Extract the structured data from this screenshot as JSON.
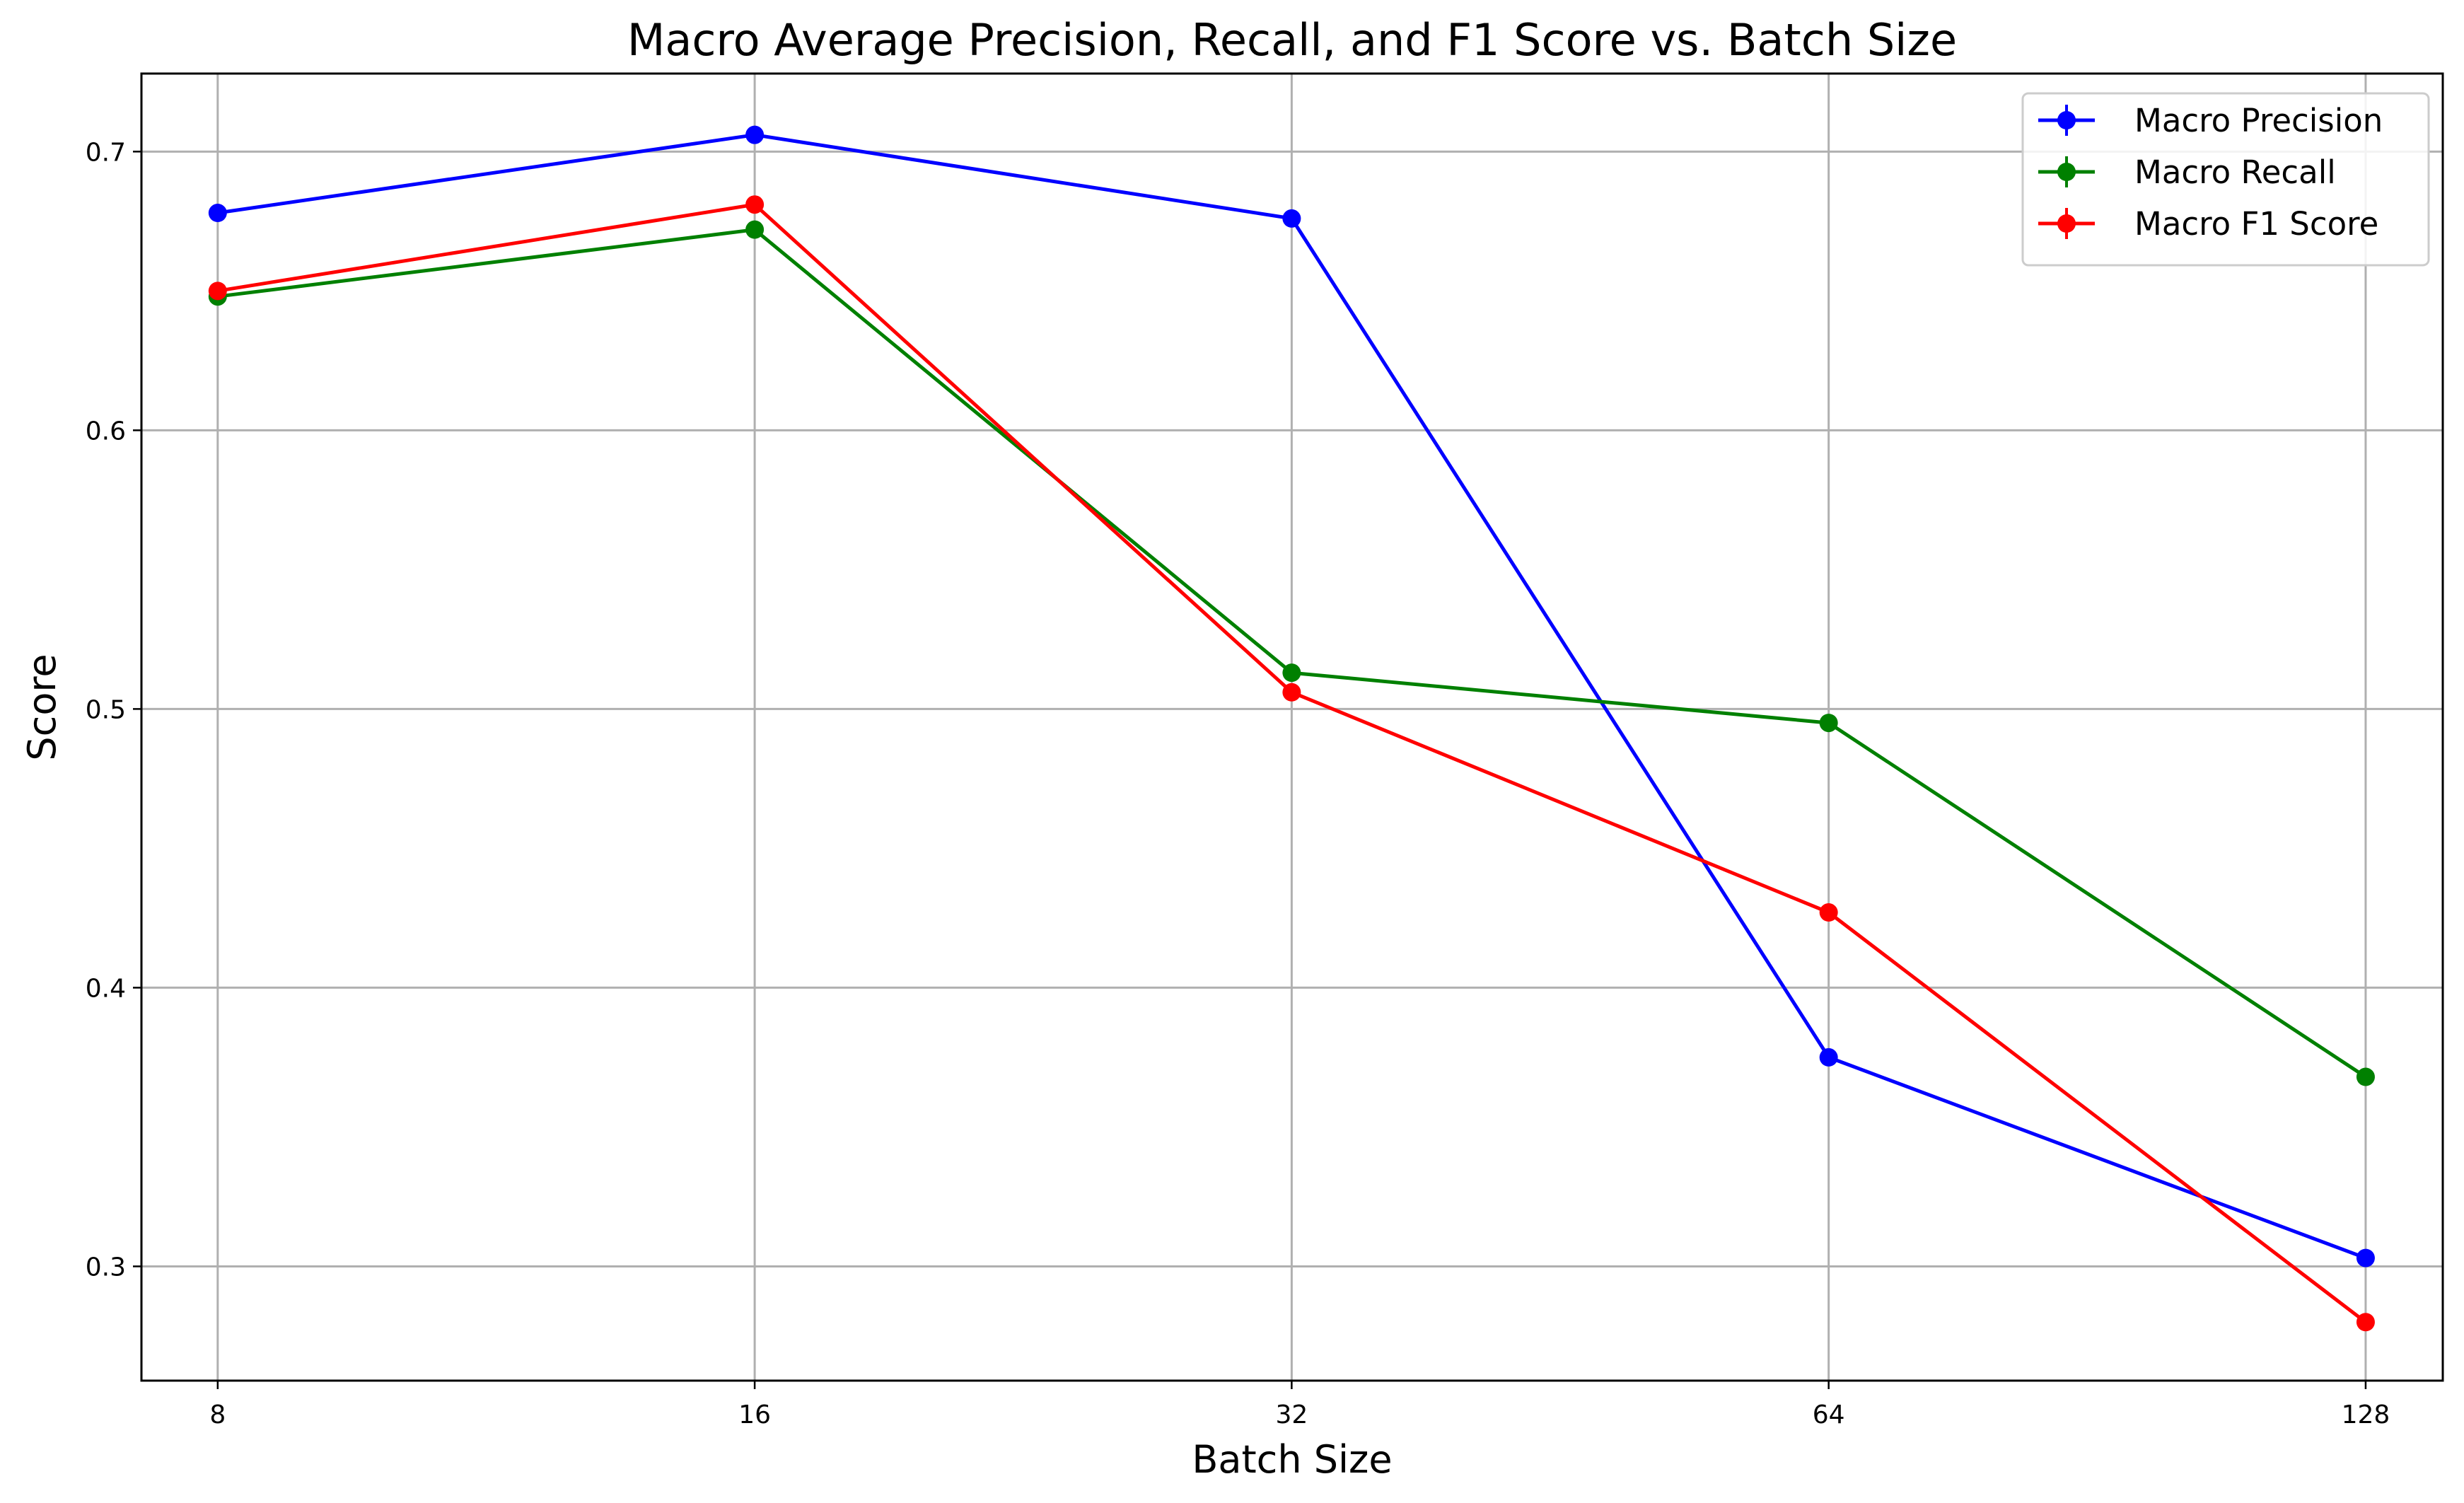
{
  "chart_data": {
    "type": "line",
    "title": "Macro Average Precision, Recall, and F1 Score vs. Batch Size",
    "xlabel": "Batch Size",
    "ylabel": "Score",
    "x_scale": "log2",
    "x": [
      8,
      16,
      32,
      64,
      128
    ],
    "x_tick_labels": [
      "8",
      "16",
      "32",
      "64",
      "128"
    ],
    "y_ticks": [
      0.3,
      0.4,
      0.5,
      0.6,
      0.7
    ],
    "y_tick_labels": [
      "0.3",
      "0.4",
      "0.5",
      "0.6",
      "0.7"
    ],
    "ylim": [
      0.259,
      0.728
    ],
    "xlim": [
      7.25,
      141.4
    ],
    "grid": true,
    "legend_position": "top-right",
    "marker": "circle",
    "series": [
      {
        "name": "Macro Precision",
        "color": "#0000ff",
        "values": [
          0.678,
          0.706,
          0.676,
          0.375,
          0.303
        ]
      },
      {
        "name": "Macro Recall",
        "color": "#008000",
        "values": [
          0.648,
          0.672,
          0.513,
          0.495,
          0.368
        ]
      },
      {
        "name": "Macro F1 Score",
        "color": "#ff0000",
        "values": [
          0.65,
          0.681,
          0.506,
          0.427,
          0.28
        ]
      }
    ]
  }
}
